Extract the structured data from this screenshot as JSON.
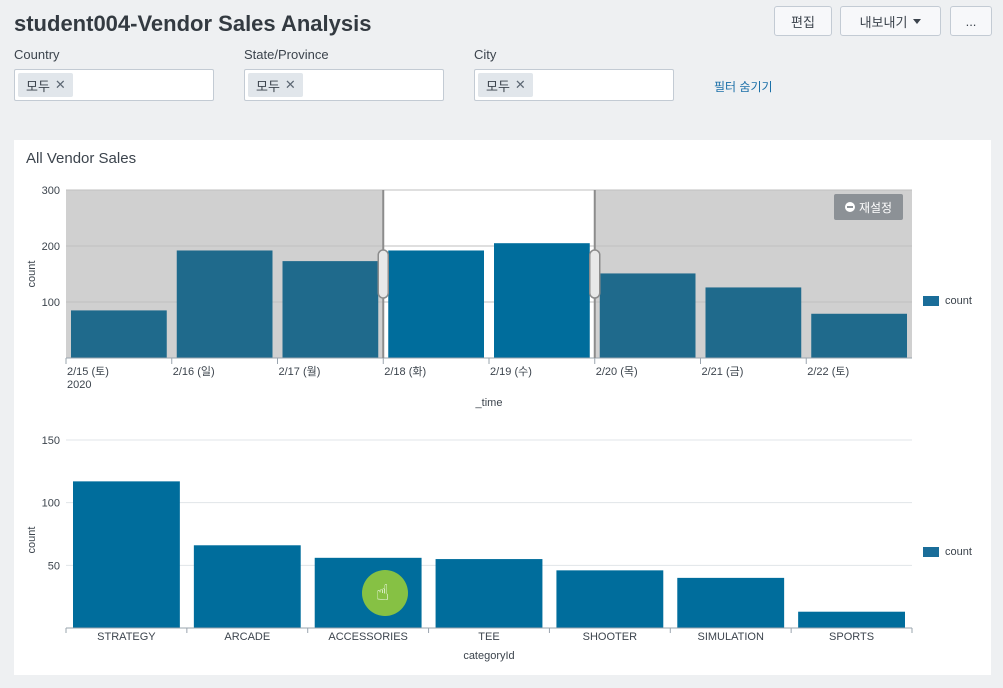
{
  "header": {
    "title": "student004-Vendor Sales Analysis",
    "edit_label": "편집",
    "export_label": "내보내기",
    "more_label": "..."
  },
  "filters": [
    {
      "label": "Country",
      "token": "모두"
    },
    {
      "label": "State/Province",
      "token": "모두"
    },
    {
      "label": "City",
      "token": "모두"
    }
  ],
  "hide_filters_label": "필터 숨기기",
  "panel": {
    "title": "All Vendor Sales",
    "reset_label": "재설정"
  },
  "colors": {
    "bar_selected": "#006d9c",
    "bar_unselected": "#1f6a8c",
    "unselected_overlay": "#d0d0d0"
  },
  "chart_data": [
    {
      "type": "bar",
      "categories": [
        "2/15 (토)",
        "2/16 (일)",
        "2/17 (월)",
        "2/18 (화)",
        "2/19 (수)",
        "2/20 (목)",
        "2/21 (금)",
        "2/22 (토)"
      ],
      "year_label": "2020",
      "values": [
        85,
        192,
        173,
        192,
        205,
        151,
        126,
        79
      ],
      "selection": {
        "from": "2/18 (화)",
        "to": "2/19 (수)"
      },
      "xlabel": "_time",
      "ylabel": "count",
      "ylim": [
        0,
        300
      ],
      "yticks": [
        100,
        200,
        300
      ],
      "legend": {
        "label": "count",
        "position": "right"
      },
      "grid": true
    },
    {
      "type": "bar",
      "categories": [
        "STRATEGY",
        "ARCADE",
        "ACCESSORIES",
        "TEE",
        "SHOOTER",
        "SIMULATION",
        "SPORTS"
      ],
      "values": [
        117,
        66,
        56,
        55,
        46,
        40,
        13
      ],
      "xlabel": "categoryId",
      "ylabel": "count",
      "ylim": [
        0,
        150
      ],
      "yticks": [
        50,
        100,
        150
      ],
      "legend": {
        "label": "count",
        "position": "right"
      },
      "grid": true
    }
  ]
}
